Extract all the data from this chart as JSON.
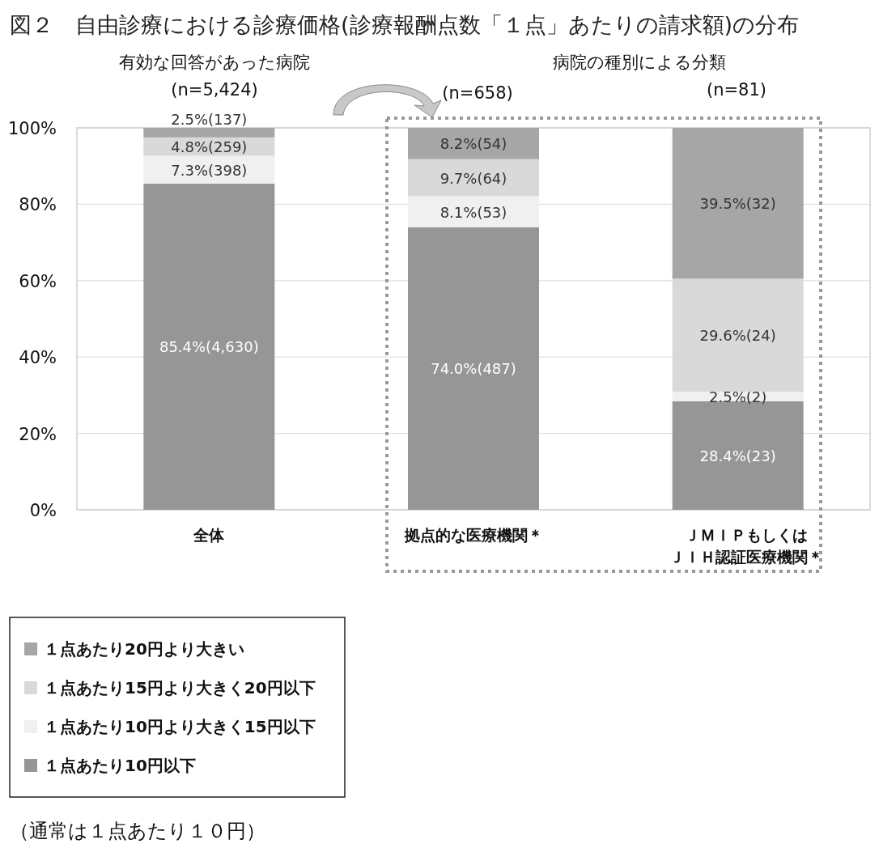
{
  "chart_data": {
    "type": "bar",
    "stacked": true,
    "title": "図２　自由診療における診療価格(診療報酬点数「１点」あたりの請求額)の分布",
    "categories": [
      "全体",
      "拠点的な医療機関＊",
      "ＪＭＩＰもしくはＪＩＨ認証医療機関＊"
    ],
    "series": [
      {
        "name": "１点あたり10円以下",
        "color": "#969696",
        "values": [
          85.4,
          74.0,
          28.4
        ],
        "value_labels": [
          "85.4%(4,630)",
          "74.0%(487)",
          "28.4%(23)"
        ]
      },
      {
        "name": "１点あたり10円より大きく15円以下",
        "color": "#f0f0f0",
        "values": [
          7.3,
          8.1,
          2.5
        ],
        "value_labels": [
          "7.3%(398)",
          "8.1%(53)",
          "2.5%(2)"
        ]
      },
      {
        "name": "１点あたり15円より大きく20円以下",
        "color": "#d9d9d9",
        "values": [
          4.8,
          9.7,
          29.6
        ],
        "value_labels": [
          "4.8%(259)",
          "9.7%(64)",
          "29.6%(24)"
        ]
      },
      {
        "name": "１点あたり20円より大きい",
        "color": "#a6a6a6",
        "values": [
          2.5,
          8.2,
          39.5
        ],
        "value_labels": [
          "2.5%(137)",
          "8.2%(54)",
          "39.5%(32)"
        ]
      }
    ],
    "ylim": [
      0,
      100
    ],
    "yticks": [
      {
        "value": 0,
        "label": "0%"
      },
      {
        "value": 20,
        "label": "20%"
      },
      {
        "value": 40,
        "label": "40%"
      },
      {
        "value": 60,
        "label": "60%"
      },
      {
        "value": 80,
        "label": "80%"
      },
      {
        "value": 100,
        "label": "100%"
      }
    ],
    "grid": "y",
    "legend": "bottom left",
    "annotations": [
      "有効な回答があった病院",
      "(n=5,424)",
      "病院の種別による分類",
      "(n=658)",
      "(n=81)",
      "（通常は１点あたり１０円）"
    ]
  }
}
